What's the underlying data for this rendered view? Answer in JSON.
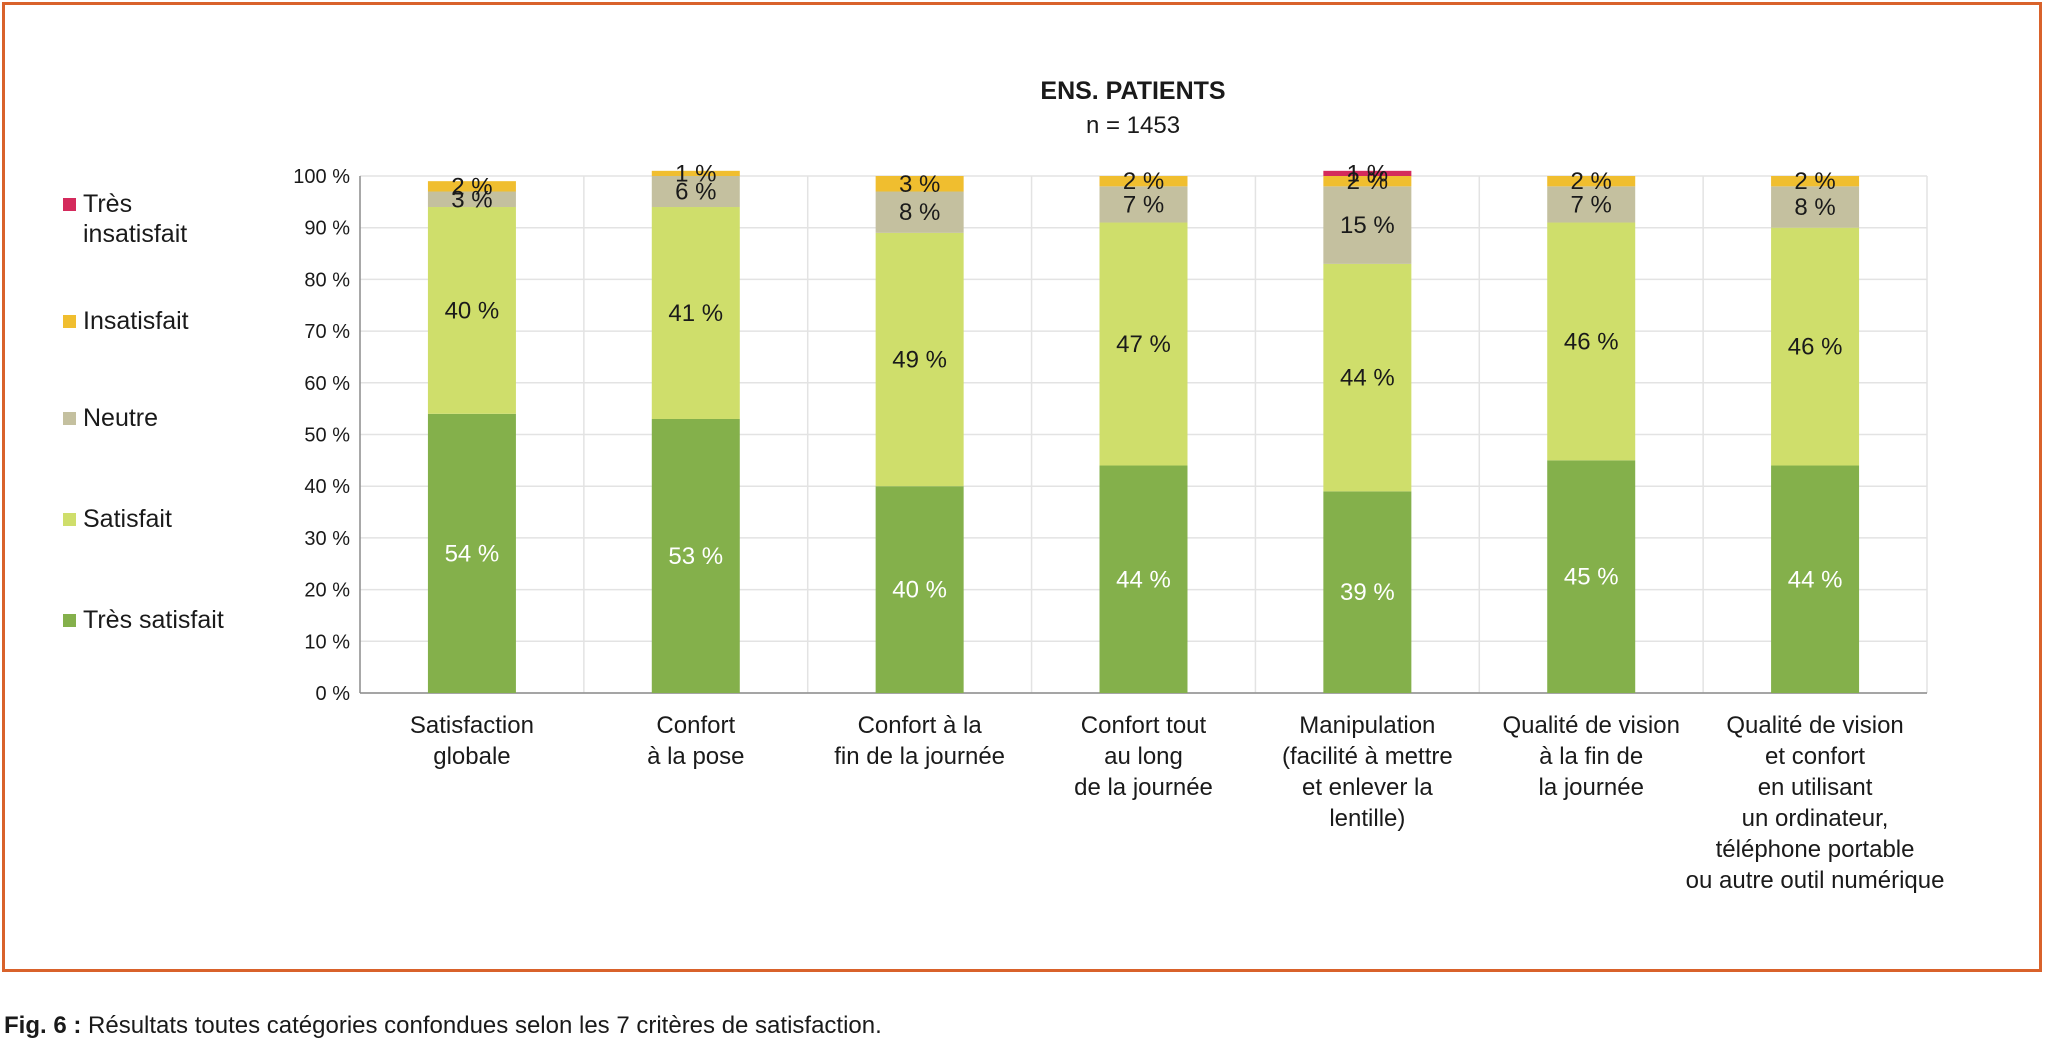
{
  "caption": {
    "prefix": "Fig. 6 :",
    "text": "Résultats toutes catégories confondues selon les 7 critères de satisfaction."
  },
  "chart_data": {
    "type": "bar",
    "stacked": true,
    "title": "ENS. PATIENTS",
    "subtitle": "n = 1453",
    "ylim": [
      0,
      100
    ],
    "yticks": [
      0,
      10,
      20,
      30,
      40,
      50,
      60,
      70,
      80,
      90,
      100
    ],
    "ytick_suffix": " %",
    "grid": true,
    "legend_position": "left",
    "categories": [
      [
        "Satisfaction",
        "globale"
      ],
      [
        "Confort",
        "à la pose"
      ],
      [
        "Confort à la",
        "fin de la journée"
      ],
      [
        "Confort tout",
        "au long",
        "de la journée"
      ],
      [
        "Manipulation",
        "(facilité à mettre",
        "et enlever la",
        "lentille)"
      ],
      [
        "Qualité de vision",
        "à la fin de",
        "la journée"
      ],
      [
        "Qualité de vision",
        "et confort",
        "en utilisant",
        "un ordinateur,",
        "téléphone portable",
        "ou autre outil numérique"
      ]
    ],
    "series": [
      {
        "name": "Très satisfait",
        "color": "#84b04b",
        "label_color": "#ffffff",
        "values": [
          54,
          53,
          40,
          44,
          39,
          45,
          44
        ]
      },
      {
        "name": "Satisfait",
        "color": "#cfde6b",
        "label_color": "#1a1a1a",
        "values": [
          40,
          41,
          49,
          47,
          44,
          46,
          46
        ]
      },
      {
        "name": "Neutre",
        "color": "#c4c09f",
        "label_color": "#1a1a1a",
        "values": [
          3,
          6,
          8,
          7,
          15,
          7,
          8
        ]
      },
      {
        "name": "Insatisfait",
        "color": "#f0be2f",
        "label_color": "#1a1a1a",
        "values": [
          2,
          1,
          3,
          2,
          2,
          2,
          2
        ]
      },
      {
        "name": "Très insatisfait",
        "color": "#d42a5c",
        "label_color": "#1a1a1a",
        "values": [
          0,
          0,
          0,
          0,
          1,
          0,
          0
        ]
      }
    ],
    "legend_order": [
      {
        "label": [
          "Très",
          "insatisfait"
        ],
        "series": 4
      },
      {
        "label": [
          "Insatisfait"
        ],
        "series": 3
      },
      {
        "label": [
          "Neutre"
        ],
        "series": 2
      },
      {
        "label": [
          "Satisfait"
        ],
        "series": 1
      },
      {
        "label": [
          "Très satisfait"
        ],
        "series": 0
      }
    ]
  }
}
